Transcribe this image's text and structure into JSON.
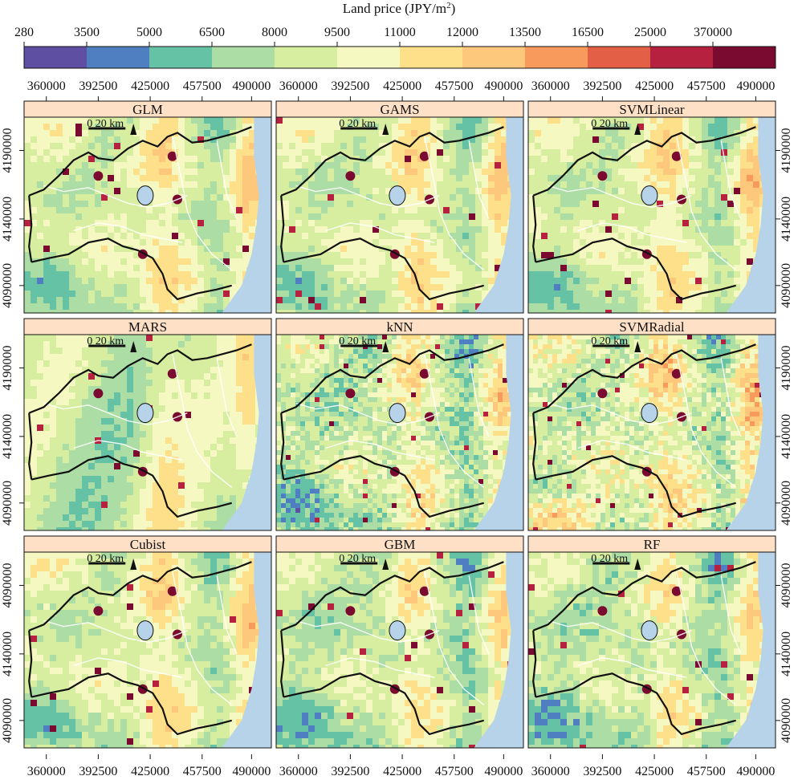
{
  "legend": {
    "title_main": "Land price (JPY/m",
    "title_sup": "2",
    "title_end": ")",
    "breaks": [
      "280",
      "3500",
      "5000",
      "6500",
      "8000",
      "9500",
      "11000",
      "12000",
      "13500",
      "16500",
      "25000",
      "370000"
    ],
    "colors": [
      "#5e4fa2",
      "#4f7fc0",
      "#66c2a5",
      "#abdda4",
      "#d7eea0",
      "#f6f8c2",
      "#fee08b",
      "#fdc77c",
      "#f79a5c",
      "#e35f45",
      "#b5213f",
      "#7a0a30"
    ]
  },
  "x_ticks": [
    "360000",
    "392500",
    "425000",
    "457500",
    "490000"
  ],
  "y_ticks": [
    "4090000",
    "4140000",
    "4190000"
  ],
  "panels": [
    {
      "title": "GLM",
      "scale": "0   20 km"
    },
    {
      "title": "GAMS",
      "scale": "0   20 km"
    },
    {
      "title": "SVMLinear",
      "scale": "0   20 km"
    },
    {
      "title": "MARS",
      "scale": "0   20 km"
    },
    {
      "title": "kNN",
      "scale": "0   20 km"
    },
    {
      "title": "SVMRadial",
      "scale": "0   20 km"
    },
    {
      "title": "Cubist",
      "scale": "0   20 km"
    },
    {
      "title": "GBM",
      "scale": "0   20 km"
    },
    {
      "title": "RF",
      "scale": "0   20 km"
    }
  ],
  "colors": {
    "strip_bg": "#fde0c5",
    "sea": "#b7d3ea",
    "lake": "#b7d3ea",
    "border": "#111111",
    "river": "#ffffff"
  }
}
